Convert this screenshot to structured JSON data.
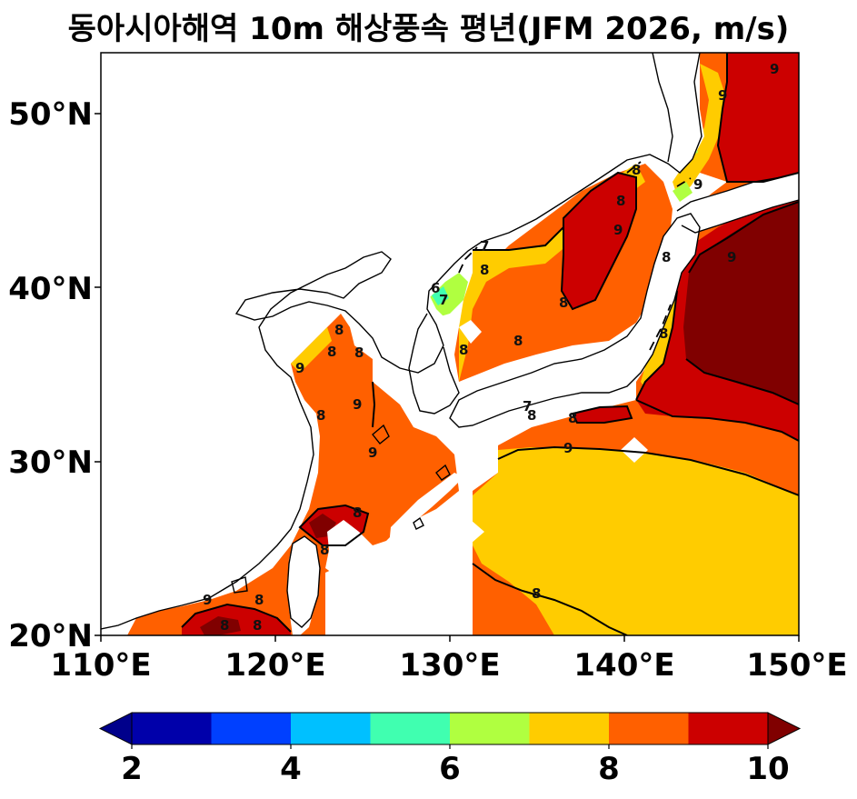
{
  "title": "동아시아해역 10m 해상풍속 평년(JFM 2026, m/s)",
  "axes": {
    "lat_ticks": [
      "50°N",
      "40°N",
      "30°N",
      "20°N"
    ],
    "lon_ticks": [
      "110°E",
      "120°E",
      "130°E",
      "140°E",
      "150°E"
    ],
    "lon_range": [
      110,
      150
    ],
    "lat_range": [
      20,
      53.5
    ]
  },
  "colorbar": {
    "ticks": [
      "2",
      "4",
      "6",
      "8",
      "10"
    ],
    "levels": [
      2,
      3,
      4,
      5,
      6,
      7,
      8,
      9,
      10
    ],
    "colors": [
      "#0000aa",
      "#0040ff",
      "#00c0ff",
      "#40ffb0",
      "#b0ff40",
      "#ffcc00",
      "#ff6000",
      "#cc0000"
    ],
    "under_color": "#00008b",
    "over_color": "#800000",
    "extend": "both"
  },
  "contour_labels": [
    "9",
    "9",
    "8",
    "9",
    "8",
    "9",
    "9",
    "8",
    "7",
    "8",
    "7",
    "6",
    "8",
    "8",
    "8",
    "8",
    "8",
    "8",
    "8",
    "9",
    "9",
    "8",
    "8",
    "8",
    "9",
    "9",
    "8",
    "8",
    "9",
    "8",
    "8",
    "8",
    "8",
    "7"
  ]
}
